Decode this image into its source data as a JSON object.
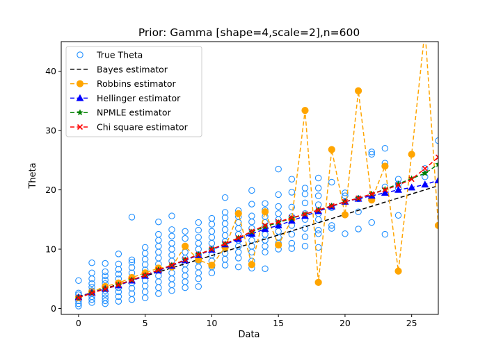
{
  "chart_data": {
    "type": "scatter",
    "title": "Prior: Gamma [shape=4,scale=2],n=600",
    "xlabel": "Data",
    "ylabel": "Theta",
    "xlim": [
      -1.3,
      27
    ],
    "ylim": [
      -1,
      45
    ],
    "x_ticks": [
      0,
      5,
      10,
      15,
      20,
      25
    ],
    "y_ticks": [
      0,
      10,
      20,
      30,
      40
    ],
    "grid": false,
    "legend_position": "top-left",
    "series": [
      {
        "name": "True Theta",
        "kind": "scatter",
        "color": "#1f8fff",
        "marker": "open-circle",
        "points": [
          [
            0,
            0.4
          ],
          [
            0,
            0.8
          ],
          [
            0,
            1.3
          ],
          [
            0,
            1.8
          ],
          [
            0,
            2.3
          ],
          [
            0,
            2.6
          ],
          [
            0,
            4.7
          ],
          [
            1,
            1.0
          ],
          [
            1,
            1.5
          ],
          [
            1,
            2.0
          ],
          [
            1,
            2.5
          ],
          [
            1,
            3.0
          ],
          [
            1,
            3.6
          ],
          [
            1,
            4.2
          ],
          [
            1,
            5.0
          ],
          [
            1,
            6.0
          ],
          [
            1,
            7.7
          ],
          [
            2,
            0.8
          ],
          [
            2,
            1.3
          ],
          [
            2,
            1.8
          ],
          [
            2,
            2.4
          ],
          [
            2,
            3.0
          ],
          [
            2,
            3.6
          ],
          [
            2,
            4.2
          ],
          [
            2,
            4.8
          ],
          [
            2,
            5.5
          ],
          [
            2,
            6.2
          ],
          [
            2,
            7.6
          ],
          [
            3,
            1.2
          ],
          [
            3,
            2.0
          ],
          [
            3,
            2.8
          ],
          [
            3,
            3.5
          ],
          [
            3,
            4.2
          ],
          [
            3,
            5.0
          ],
          [
            3,
            5.8
          ],
          [
            3,
            6.6
          ],
          [
            3,
            7.5
          ],
          [
            3,
            9.2
          ],
          [
            4,
            1.5
          ],
          [
            4,
            2.5
          ],
          [
            4,
            3.4
          ],
          [
            4,
            4.3
          ],
          [
            4,
            5.2
          ],
          [
            4,
            6.0
          ],
          [
            4,
            6.9
          ],
          [
            4,
            7.8
          ],
          [
            4,
            8.2
          ],
          [
            4,
            15.4
          ],
          [
            5,
            1.8
          ],
          [
            5,
            2.8
          ],
          [
            5,
            3.8
          ],
          [
            5,
            4.7
          ],
          [
            5,
            5.6
          ],
          [
            5,
            6.5
          ],
          [
            5,
            7.4
          ],
          [
            5,
            8.3
          ],
          [
            5,
            9.3
          ],
          [
            5,
            10.3
          ],
          [
            6,
            2.5
          ],
          [
            6,
            3.5
          ],
          [
            6,
            4.5
          ],
          [
            6,
            5.5
          ],
          [
            6,
            6.5
          ],
          [
            6,
            7.5
          ],
          [
            6,
            8.5
          ],
          [
            6,
            9.5
          ],
          [
            6,
            10.5
          ],
          [
            6,
            11.5
          ],
          [
            6,
            12.5
          ],
          [
            6,
            14.6
          ],
          [
            7,
            3.0
          ],
          [
            7,
            4.0
          ],
          [
            7,
            5.0
          ],
          [
            7,
            6.0
          ],
          [
            7,
            7.0
          ],
          [
            7,
            8.0
          ],
          [
            7,
            9.0
          ],
          [
            7,
            10.0
          ],
          [
            7,
            11.0
          ],
          [
            7,
            12.2
          ],
          [
            7,
            13.3
          ],
          [
            7,
            15.6
          ],
          [
            8,
            3.5
          ],
          [
            8,
            4.5
          ],
          [
            8,
            5.5
          ],
          [
            8,
            6.5
          ],
          [
            8,
            7.5
          ],
          [
            8,
            8.5
          ],
          [
            8,
            9.5
          ],
          [
            8,
            10.5
          ],
          [
            8,
            11.8
          ],
          [
            8,
            13.0
          ],
          [
            9,
            3.7
          ],
          [
            9,
            5.0
          ],
          [
            9,
            6.0
          ],
          [
            9,
            7.0
          ],
          [
            9,
            8.0
          ],
          [
            9,
            9.0
          ],
          [
            9,
            10.0
          ],
          [
            9,
            11.0
          ],
          [
            9,
            12.0
          ],
          [
            9,
            13.2
          ],
          [
            9,
            14.5
          ],
          [
            10,
            6.0
          ],
          [
            10,
            7.0
          ],
          [
            10,
            8.0
          ],
          [
            10,
            9.0
          ],
          [
            10,
            10.0
          ],
          [
            10,
            11.0
          ],
          [
            10,
            12.0
          ],
          [
            10,
            13.0
          ],
          [
            10,
            14.2
          ],
          [
            10,
            15.2
          ],
          [
            11,
            7.3
          ],
          [
            11,
            8.3
          ],
          [
            11,
            9.3
          ],
          [
            11,
            10.3
          ],
          [
            11,
            11.3
          ],
          [
            11,
            12.3
          ],
          [
            11,
            13.3
          ],
          [
            11,
            14.3
          ],
          [
            11,
            15.3
          ],
          [
            11,
            16.2
          ],
          [
            11,
            18.7
          ],
          [
            12,
            7.0
          ],
          [
            12,
            8.5
          ],
          [
            12,
            9.5
          ],
          [
            12,
            10.5
          ],
          [
            12,
            11.5
          ],
          [
            12,
            12.5
          ],
          [
            12,
            13.5
          ],
          [
            12,
            14.5
          ],
          [
            12,
            15.5
          ],
          [
            12,
            16.5
          ],
          [
            13,
            6.8
          ],
          [
            13,
            8.0
          ],
          [
            13,
            9.5
          ],
          [
            13,
            10.5
          ],
          [
            13,
            11.5
          ],
          [
            13,
            12.5
          ],
          [
            13,
            13.5
          ],
          [
            13,
            14.6
          ],
          [
            13,
            15.6
          ],
          [
            13,
            17.6
          ],
          [
            13,
            19.9
          ],
          [
            14,
            6.7
          ],
          [
            14,
            9.5
          ],
          [
            14,
            10.5
          ],
          [
            14,
            11.5
          ],
          [
            14,
            12.5
          ],
          [
            14,
            13.5
          ],
          [
            14,
            14.5
          ],
          [
            14,
            15.5
          ],
          [
            14,
            16.6
          ],
          [
            14,
            17.7
          ],
          [
            15,
            10.0
          ],
          [
            15,
            11.0
          ],
          [
            15,
            12.0
          ],
          [
            15,
            13.0
          ],
          [
            15,
            14.0
          ],
          [
            15,
            15.0
          ],
          [
            15,
            16.0
          ],
          [
            15,
            17.2
          ],
          [
            15,
            19.2
          ],
          [
            15,
            23.5
          ],
          [
            16,
            10.1
          ],
          [
            16,
            11.0
          ],
          [
            16,
            12.5
          ],
          [
            16,
            14.0
          ],
          [
            16,
            15.5
          ],
          [
            16,
            17.1
          ],
          [
            16,
            19.6
          ],
          [
            16,
            21.8
          ],
          [
            17,
            10.5
          ],
          [
            17,
            12.1
          ],
          [
            17,
            13.5
          ],
          [
            17,
            15.0
          ],
          [
            17,
            16.0
          ],
          [
            17,
            17.8
          ],
          [
            17,
            19.3
          ],
          [
            17,
            20.3
          ],
          [
            18,
            10.3
          ],
          [
            18,
            12.6
          ],
          [
            18,
            13.2
          ],
          [
            18,
            15.0
          ],
          [
            18,
            16.0
          ],
          [
            18,
            17.5
          ],
          [
            18,
            19.0
          ],
          [
            18,
            20.3
          ],
          [
            18,
            22.0
          ],
          [
            19,
            13.5
          ],
          [
            19,
            14.0
          ],
          [
            19,
            17.0
          ],
          [
            19,
            21.3
          ],
          [
            20,
            12.6
          ],
          [
            20,
            15.8
          ],
          [
            20,
            19.0
          ],
          [
            20,
            19.5
          ],
          [
            21,
            13.4
          ],
          [
            21,
            16.3
          ],
          [
            21,
            18.5
          ],
          [
            22,
            14.5
          ],
          [
            22,
            18.7
          ],
          [
            22,
            26.0
          ],
          [
            22,
            26.4
          ],
          [
            23,
            12.5
          ],
          [
            23,
            20.5
          ],
          [
            23,
            24.5
          ],
          [
            23,
            27.0
          ],
          [
            24,
            15.7
          ],
          [
            24,
            20.3
          ],
          [
            24,
            21.0
          ],
          [
            24,
            21.8
          ],
          [
            26,
            22.2
          ],
          [
            26,
            23.6
          ],
          [
            27,
            28.3
          ]
        ]
      },
      {
        "name": "Bayes estimator",
        "kind": "line",
        "color": "#000000",
        "dash": "dashed",
        "x": [
          0,
          27
        ],
        "y": [
          2.0,
          20.7
        ]
      },
      {
        "name": "Robbins estimator",
        "kind": "line-marker",
        "color": "#ffa500",
        "marker": "circle",
        "x": [
          0,
          1,
          2,
          3,
          4,
          5,
          6,
          7,
          8,
          9,
          10,
          11,
          12,
          13,
          14,
          15,
          16,
          17,
          18,
          19,
          20,
          21,
          22,
          23,
          24,
          25,
          26,
          27
        ],
        "y": [
          1.8,
          2.8,
          3.7,
          4.3,
          5.2,
          6.0,
          6.8,
          7.0,
          10.5,
          8.2,
          7.3,
          10.3,
          16.0,
          7.4,
          16.3,
          10.7,
          15.0,
          33.4,
          4.4,
          26.8,
          15.8,
          36.7,
          18.3,
          24.0,
          6.3,
          26.0,
          47.0,
          14.0
        ]
      },
      {
        "name": "Hellinger estimator",
        "kind": "line-marker",
        "color": "#0000ff",
        "marker": "triangle",
        "x": [
          0,
          1,
          2,
          3,
          4,
          5,
          6,
          7,
          8,
          9,
          10,
          11,
          12,
          13,
          14,
          15,
          16,
          17,
          18,
          19,
          20,
          21,
          22,
          23,
          24,
          25,
          26,
          27
        ],
        "y": [
          1.9,
          2.7,
          3.3,
          3.9,
          4.7,
          5.5,
          6.4,
          7.2,
          8.1,
          9.0,
          9.9,
          10.8,
          11.7,
          12.6,
          13.4,
          14.0,
          14.8,
          15.6,
          16.4,
          17.2,
          18.0,
          18.5,
          19.0,
          19.5,
          20.0,
          20.4,
          20.9,
          21.6
        ]
      },
      {
        "name": "NPMLE estimator",
        "kind": "line-marker",
        "color": "#008000",
        "marker": "star",
        "x": [
          0,
          1,
          2,
          3,
          4,
          5,
          6,
          7,
          8,
          9,
          10,
          11,
          12,
          13,
          14,
          15,
          16,
          17,
          18,
          19,
          20,
          21,
          22,
          23,
          24,
          25,
          26,
          27
        ],
        "y": [
          1.8,
          2.6,
          3.3,
          4.0,
          4.8,
          5.6,
          6.5,
          7.3,
          8.2,
          9.1,
          10.0,
          10.9,
          11.9,
          12.9,
          13.8,
          14.5,
          15.2,
          15.9,
          16.6,
          17.3,
          18.0,
          18.6,
          19.3,
          20.1,
          21.0,
          21.9,
          22.8,
          24.3
        ]
      },
      {
        "name": "Chi square estimator",
        "kind": "line-marker",
        "color": "#ff0000",
        "marker": "x",
        "x": [
          0,
          1,
          2,
          3,
          4,
          5,
          6,
          7,
          8,
          9,
          10,
          11,
          12,
          13,
          14,
          15,
          16,
          17,
          18,
          19,
          20,
          21,
          22,
          23,
          24,
          25,
          26,
          27
        ],
        "y": [
          1.8,
          2.6,
          3.3,
          4.0,
          4.8,
          5.6,
          6.5,
          7.3,
          8.2,
          9.1,
          10.0,
          10.9,
          11.9,
          13.0,
          14.0,
          14.6,
          15.3,
          15.9,
          16.6,
          17.3,
          18.0,
          18.6,
          19.3,
          20.0,
          20.8,
          21.8,
          23.6,
          25.5
        ]
      }
    ]
  }
}
